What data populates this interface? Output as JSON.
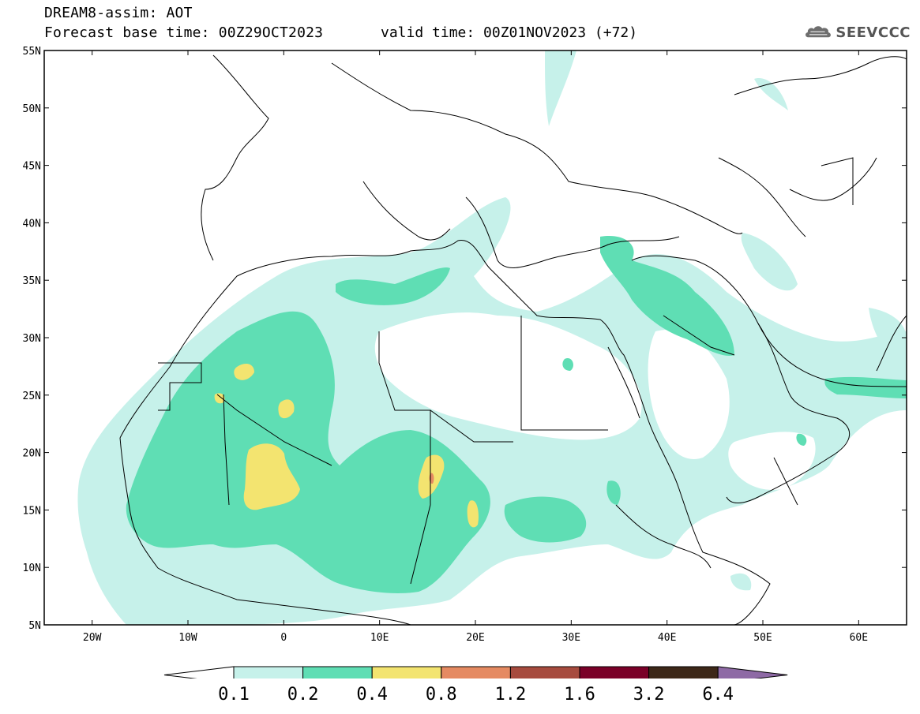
{
  "header": {
    "title": "DREAM8-assim: AOT",
    "base_time": "Forecast base time: 00Z29OCT2023",
    "valid_time": "valid time: 00Z01NOV2023 (+72)"
  },
  "logo": {
    "text": "SEEVCCC",
    "icon": "cloud-icon"
  },
  "map": {
    "lon_range": [
      -25,
      65
    ],
    "lat_range": [
      5,
      55
    ],
    "lat_ticks": [
      "55N",
      "50N",
      "45N",
      "40N",
      "35N",
      "30N",
      "25N",
      "20N",
      "15N",
      "10N",
      "5N"
    ],
    "lon_ticks": [
      "20W",
      "10W",
      "0",
      "10E",
      "20E",
      "30E",
      "40E",
      "50E",
      "60E"
    ]
  },
  "colorbar": {
    "labels": [
      "0.1",
      "0.2",
      "0.4",
      "0.8",
      "1.2",
      "1.6",
      "3.2",
      "6.4"
    ],
    "colors": [
      "#ffffff",
      "#c6f1ea",
      "#5fdeb4",
      "#f3e470",
      "#e58a62",
      "#a74b3e",
      "#7a0028",
      "#3d2818",
      "#8e6aa5"
    ]
  },
  "colors": {
    "level_0_1": "#c6f1ea",
    "level_0_2": "#5fdeb4",
    "level_0_4": "#f3e470",
    "level_0_8": "#e58a62",
    "level_1_2": "#a74b3e"
  }
}
